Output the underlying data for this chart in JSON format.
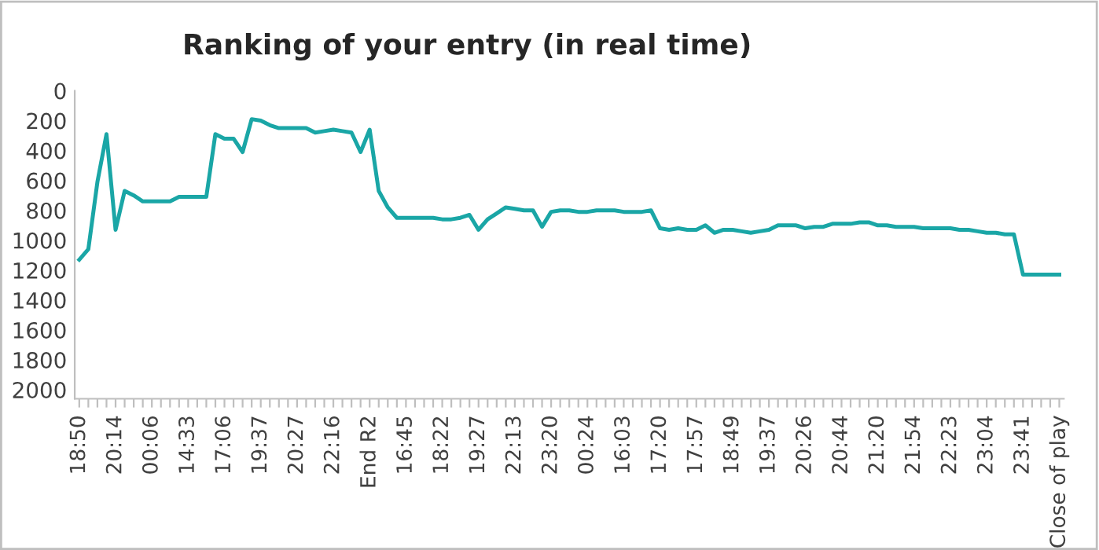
{
  "chart_data": {
    "type": "line",
    "title": "Ranking of your entry (in real time)",
    "categories": [
      "18:50",
      null,
      null,
      null,
      "20:14",
      null,
      null,
      null,
      "00:06",
      null,
      null,
      null,
      "14:33",
      null,
      null,
      null,
      "17:06",
      null,
      null,
      null,
      "19:37",
      null,
      null,
      null,
      "20:27",
      null,
      null,
      null,
      "22:16",
      null,
      null,
      null,
      "End R2",
      null,
      null,
      null,
      "16:45",
      null,
      null,
      null,
      "18:22",
      null,
      null,
      null,
      "19:27",
      null,
      null,
      null,
      "22:13",
      null,
      null,
      null,
      "23:20",
      null,
      null,
      null,
      "00:24",
      null,
      null,
      null,
      "16:03",
      null,
      null,
      null,
      "17:20",
      null,
      null,
      null,
      "17:57",
      null,
      null,
      null,
      "18:49",
      null,
      null,
      null,
      "19:37",
      null,
      null,
      null,
      "20:26",
      null,
      null,
      null,
      "20:44",
      null,
      null,
      null,
      "21:20",
      null,
      null,
      null,
      "21:54",
      null,
      null,
      null,
      "22:23",
      null,
      null,
      null,
      "23:04",
      null,
      null,
      null,
      "23:41",
      null,
      null,
      null,
      "Close of play"
    ],
    "series": [
      {
        "color": "#1aa6a6",
        "values": [
          1130,
          1060,
          610,
          290,
          930,
          670,
          700,
          740,
          740,
          740,
          740,
          710,
          710,
          710,
          710,
          290,
          320,
          320,
          410,
          190,
          200,
          230,
          250,
          250,
          250,
          250,
          280,
          270,
          260,
          270,
          280,
          410,
          260,
          670,
          780,
          850,
          850,
          850,
          850,
          850,
          860,
          860,
          850,
          830,
          930,
          860,
          820,
          780,
          790,
          800,
          800,
          910,
          810,
          800,
          800,
          810,
          810,
          800,
          800,
          800,
          810,
          810,
          810,
          800,
          920,
          930,
          920,
          930,
          930,
          900,
          950,
          930,
          930,
          940,
          950,
          940,
          930,
          900,
          900,
          900,
          920,
          910,
          910,
          890,
          890,
          890,
          880,
          880,
          900,
          900,
          910,
          910,
          910,
          920,
          920,
          920,
          920,
          930,
          930,
          940,
          950,
          950,
          960,
          960,
          1230,
          1230,
          1230,
          1230,
          1230
        ]
      }
    ],
    "ylim": [
      2060,
      0
    ],
    "yticks": [
      0,
      200,
      400,
      600,
      800,
      1000,
      1200,
      1400,
      1600,
      1800,
      2000
    ],
    "grid": false,
    "marker": "none",
    "line_style": "solid"
  }
}
